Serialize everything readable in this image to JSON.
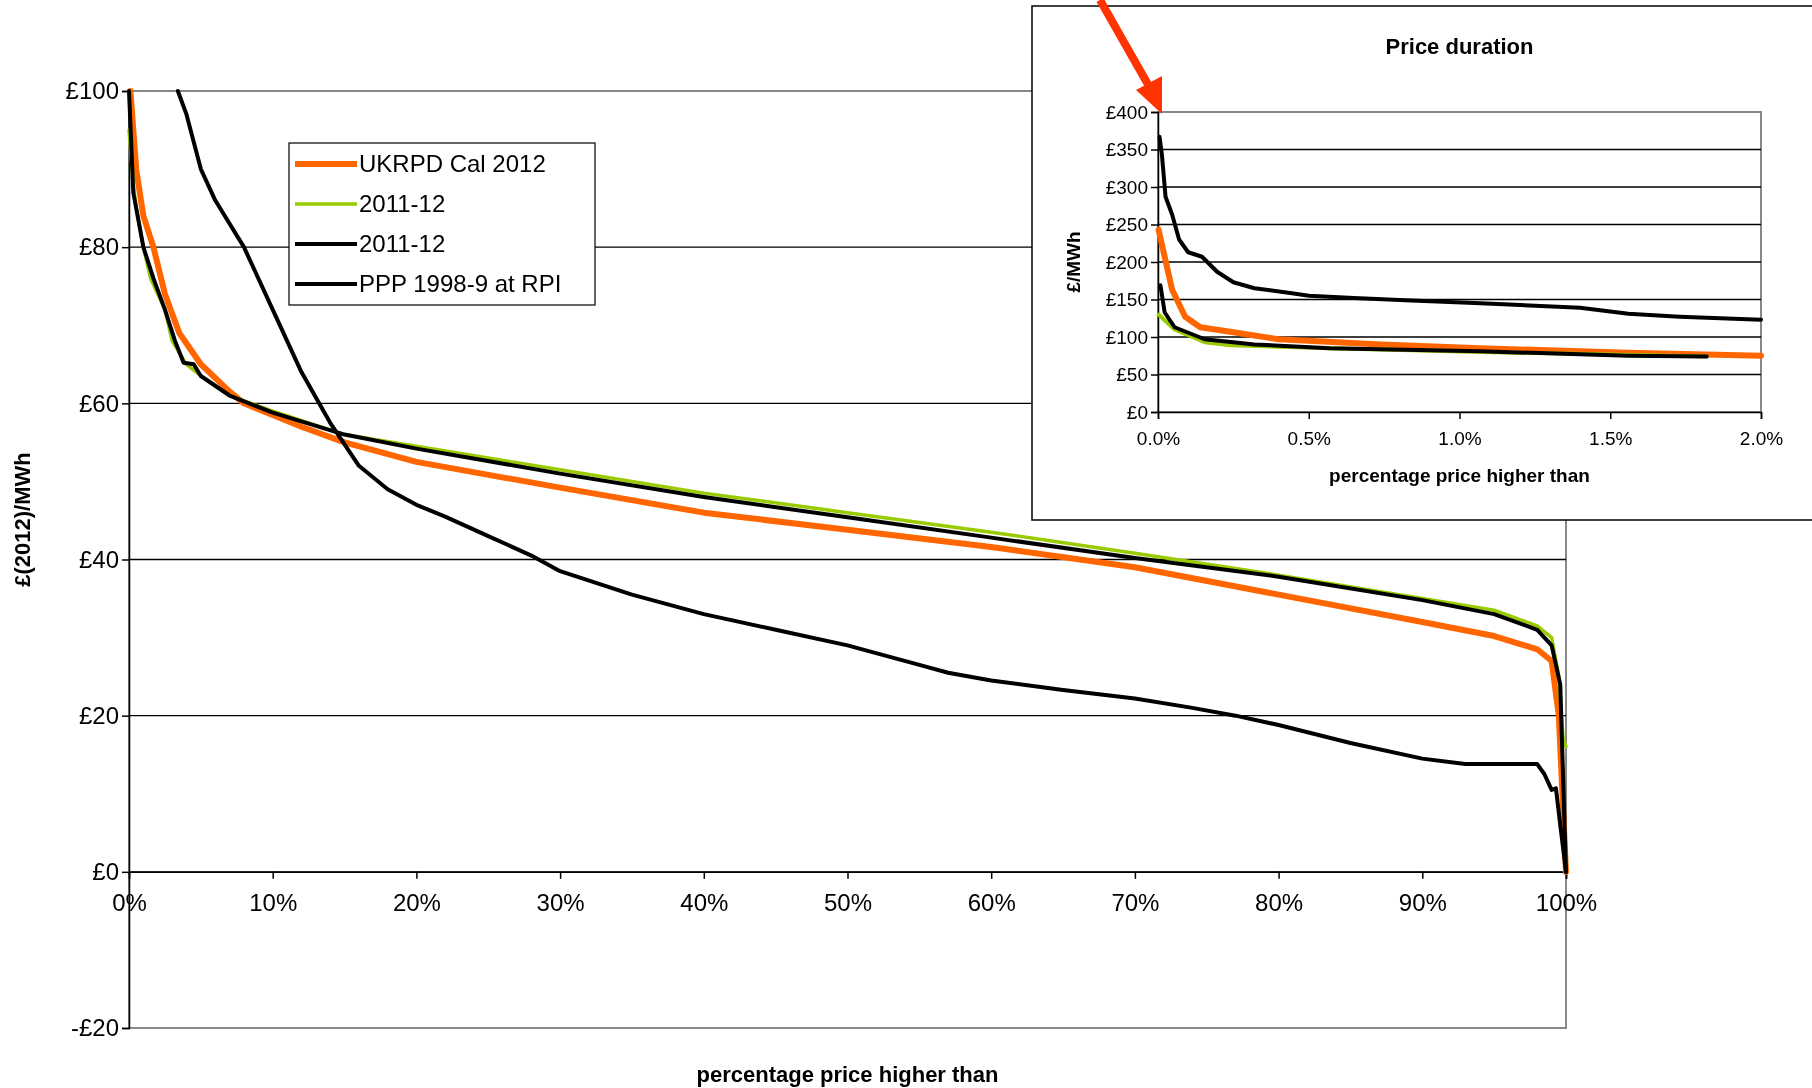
{
  "chart_data": [
    {
      "type": "line",
      "xlabel": "percentage price higher than",
      "ylabel": "£(2012)/MWh",
      "xlim": [
        0,
        100
      ],
      "ylim": [
        -20,
        100
      ],
      "grid": "y",
      "legend": "top left",
      "xticks": [
        {
          "value": 0,
          "label": "0%"
        },
        {
          "value": 10,
          "label": "10%"
        },
        {
          "value": 20,
          "label": "20%"
        },
        {
          "value": 30,
          "label": "30%"
        },
        {
          "value": 40,
          "label": "40%"
        },
        {
          "value": 50,
          "label": "50%"
        },
        {
          "value": 60,
          "label": "60%"
        },
        {
          "value": 70,
          "label": "70%"
        },
        {
          "value": 80,
          "label": "80%"
        },
        {
          "value": 90,
          "label": "90%"
        },
        {
          "value": 100,
          "label": "100%"
        }
      ],
      "yticks": [
        {
          "value": -20,
          "label": "-£20"
        },
        {
          "value": 0,
          "label": "£0"
        },
        {
          "value": 20,
          "label": "£20"
        },
        {
          "value": 40,
          "label": "£40"
        },
        {
          "value": 60,
          "label": "£60"
        },
        {
          "value": 80,
          "label": "£80"
        },
        {
          "value": 100,
          "label": "£100"
        }
      ],
      "series": [
        {
          "name": "UKRPD Cal 2012",
          "color": "#ff6600",
          "x": [
            0.1,
            0.5,
            1,
            1.7,
            2.5,
            3.5,
            5,
            7,
            8,
            10,
            12,
            15,
            20,
            30,
            40,
            50,
            60,
            70,
            80,
            90,
            95,
            98,
            99,
            99.5,
            100
          ],
          "values": [
            100,
            90,
            84,
            80,
            74,
            69,
            65,
            61.5,
            60,
            58.5,
            57,
            55,
            52.5,
            49.2,
            46,
            43.8,
            41.6,
            39,
            35.5,
            32,
            30.2,
            28.5,
            27,
            20,
            0
          ]
        },
        {
          "name": "2011-12",
          "color": "#99cc00",
          "x": [
            0,
            0.3,
            0.5,
            1,
            1.5,
            2.5,
            3,
            4,
            5,
            7,
            10,
            15,
            20,
            30,
            40,
            50,
            60,
            70,
            80,
            90,
            95,
            98,
            99,
            99.5,
            99.8,
            100
          ],
          "values": [
            95,
            88,
            85,
            80,
            76,
            72,
            68,
            65,
            63.5,
            61,
            59,
            56,
            54.5,
            51.5,
            48.5,
            46,
            43.5,
            40.8,
            38,
            35,
            33.5,
            31.5,
            30,
            25,
            17,
            16
          ]
        },
        {
          "name": "2011-12",
          "color": "#000000",
          "x": [
            0,
            0.3,
            1,
            1.7,
            2.5,
            3.2,
            3.8,
            4.5,
            5,
            7,
            10,
            15,
            20,
            30,
            40,
            50,
            60,
            70,
            80,
            90,
            95,
            98,
            99,
            99.6,
            100
          ],
          "values": [
            100,
            87,
            80,
            76,
            72,
            68,
            65.2,
            65,
            63.5,
            61,
            58.8,
            56,
            54.2,
            51,
            48,
            45.4,
            42.8,
            40.2,
            37.8,
            34.8,
            33,
            31,
            29,
            24,
            0
          ]
        },
        {
          "name": "PPP 1998-9 at RPI",
          "color": "#000000",
          "x": [
            3.4,
            4,
            5,
            6,
            8,
            10,
            12,
            14,
            16,
            18,
            20,
            22,
            25,
            28,
            30,
            35,
            40,
            45,
            50,
            55,
            57,
            60,
            65,
            70,
            74,
            77,
            80,
            85,
            90,
            93,
            98,
            98.5,
            99,
            99.3,
            99.6,
            100
          ],
          "values": [
            100,
            97,
            90,
            86,
            80,
            72,
            64,
            57.5,
            52,
            49,
            47,
            45.5,
            43,
            40.5,
            38.5,
            35.5,
            33,
            31,
            29,
            26.5,
            25.5,
            24.5,
            23.3,
            22.2,
            21,
            20,
            18.8,
            16.5,
            14.5,
            13.8,
            13.8,
            12.5,
            10.5,
            10.7,
            6,
            0
          ]
        }
      ]
    },
    {
      "type": "line",
      "title": "Price duration",
      "xlabel": "percentage price higher than",
      "ylabel": "£/MWh",
      "xlim": [
        0,
        2
      ],
      "ylim": [
        0,
        400
      ],
      "grid": "y",
      "xticks": [
        {
          "value": 0,
          "label": "0.0%"
        },
        {
          "value": 0.5,
          "label": "0.5%"
        },
        {
          "value": 1,
          "label": "1.0%"
        },
        {
          "value": 1.5,
          "label": "1.5%"
        },
        {
          "value": 2,
          "label": "2.0%"
        }
      ],
      "yticks": [
        {
          "value": 0,
          "label": "£0"
        },
        {
          "value": 50,
          "label": "£50"
        },
        {
          "value": 100,
          "label": "£100"
        },
        {
          "value": 150,
          "label": "£150"
        },
        {
          "value": 200,
          "label": "£200"
        },
        {
          "value": 250,
          "label": "£250"
        },
        {
          "value": 300,
          "label": "£300"
        },
        {
          "value": 350,
          "label": "£350"
        },
        {
          "value": 400,
          "label": "£400"
        }
      ],
      "series": [
        {
          "color": "#ff6600",
          "x": [
            0.002,
            0.013,
            0.047,
            0.09,
            0.14,
            0.24,
            0.4,
            0.74,
            1.07,
            1.56,
            2
          ],
          "values": [
            243,
            223,
            163,
            127,
            113,
            107,
            97,
            90,
            85,
            79,
            75
          ]
        },
        {
          "color": "#99cc00",
          "x": [
            0.002,
            0.055,
            0.155,
            0.24,
            0.57,
            1.07,
            1.82
          ],
          "values": [
            130,
            110,
            93,
            89,
            85,
            80,
            74
          ]
        },
        {
          "color": "#000000",
          "x": [
            0.008,
            0.022,
            0.055,
            0.155,
            0.32,
            0.57,
            1.07,
            1.56,
            1.82
          ],
          "values": [
            169,
            133,
            113,
            97,
            90,
            85,
            81,
            75,
            74
          ]
        },
        {
          "color": "#000000",
          "x": [
            0.005,
            0.013,
            0.025,
            0.047,
            0.07,
            0.1,
            0.146,
            0.196,
            0.25,
            0.32,
            0.45,
            0.5,
            0.65,
            0.82,
            1.07,
            1.4,
            1.56,
            1.73,
            2
          ],
          "values": [
            367,
            343,
            287,
            263,
            230,
            213,
            207,
            187,
            173,
            165,
            158,
            155,
            152,
            149,
            145,
            139,
            131,
            127,
            123
          ]
        }
      ]
    }
  ]
}
